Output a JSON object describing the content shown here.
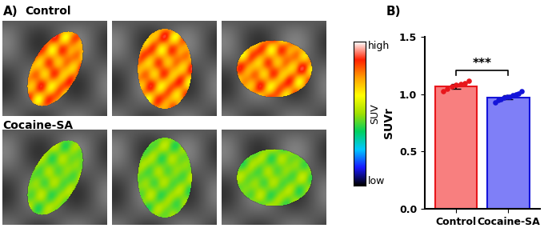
{
  "panel_a": {
    "label": "A)",
    "rows": [
      "Control",
      "Cocaine-SA"
    ],
    "colorbar": {
      "label": "SUV",
      "high": "high",
      "low": "low"
    }
  },
  "chart_data": {
    "type": "bar",
    "title": "B)",
    "ylabel": "SUVr",
    "categories": [
      "Control",
      "Cocaine-SA"
    ],
    "values": [
      1.07,
      0.975
    ],
    "errors": [
      0.02,
      0.015
    ],
    "points": [
      [
        1.03,
        1.05,
        1.07,
        1.08,
        1.09,
        1.1,
        1.12
      ],
      [
        0.93,
        0.95,
        0.96,
        0.97,
        0.98,
        0.98,
        0.99,
        1.0,
        1.01,
        1.03
      ]
    ],
    "colors": [
      "#f87f7f",
      "#7f7ff7"
    ],
    "annotations": [
      "***"
    ],
    "ylim": [
      0,
      1.5
    ],
    "yticks": [
      {
        "value": 0,
        "label": "0.0"
      },
      0.5,
      {
        "value": 1,
        "label": "1.0"
      },
      1.5
    ],
    "grid": false
  }
}
